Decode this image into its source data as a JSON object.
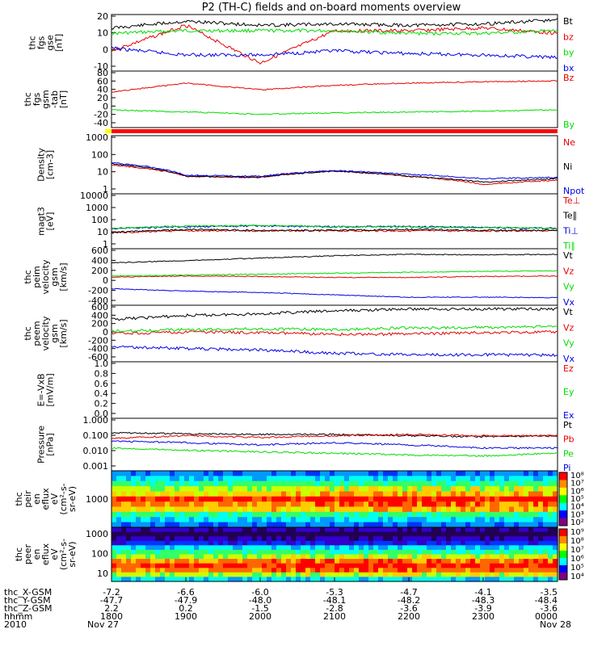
{
  "title": "P2 (TH-C) fields and on-board moments overview",
  "colors": {
    "black": "#000000",
    "red": "#e60000",
    "green": "#00dc00",
    "blue": "#0000e6"
  },
  "panels": [
    {
      "id": "fgs-gse",
      "ylabel": [
        "thc",
        "fgs",
        "gse",
        "[nT]"
      ],
      "yticks": [
        "20",
        "10",
        "0",
        "-10"
      ],
      "ylim": [
        -20,
        22
      ],
      "log": false,
      "legend": [
        {
          "text": "Bt",
          "color": "black"
        },
        {
          "text": "bz",
          "color": "red"
        },
        {
          "text": "by",
          "color": "green"
        },
        {
          "text": "bx",
          "color": "blue"
        }
      ]
    },
    {
      "id": "fgs-gsm",
      "ylabel": [
        "thc",
        "fgs",
        "gsm",
        "-tab"
      ],
      "ylabel2": "[nT]",
      "yticks": [
        "80",
        "60",
        "40",
        "20",
        "0",
        "-20",
        "-40"
      ],
      "ylim": [
        -45,
        82
      ],
      "log": false,
      "legend": [
        {
          "text": "Bz",
          "color": "red"
        },
        {
          "text": "By",
          "color": "green"
        }
      ]
    },
    {
      "id": "density",
      "ylabel": [
        "Density",
        "[cm-3]"
      ],
      "yticks": [
        "1000",
        "100",
        "10",
        "1"
      ],
      "ylim": [
        0,
        3
      ],
      "log": true,
      "legend": [
        {
          "text": "Ne",
          "color": "red"
        },
        {
          "text": "Ni",
          "color": "black"
        },
        {
          "text": "Npot",
          "color": "blue"
        }
      ]
    },
    {
      "id": "temperature",
      "ylabel": [
        "magt3",
        "[eV]"
      ],
      "yticks": [
        "10000",
        "1000",
        "100",
        "10",
        "1"
      ],
      "ylim": [
        0,
        4
      ],
      "log": true,
      "legend": [
        {
          "text": "Te⊥",
          "color": "red"
        },
        {
          "text": "Te∥",
          "color": "black"
        },
        {
          "text": "Ti⊥",
          "color": "blue"
        },
        {
          "text": "Ti∥",
          "color": "green"
        }
      ]
    },
    {
      "id": "peim-velocity",
      "ylabel": [
        "thc",
        "peim",
        "velocity",
        "gsm",
        "[km/s]"
      ],
      "yticks": [
        "600",
        "400",
        "200",
        "0",
        "-200",
        "-400"
      ],
      "ylim": [
        -600,
        600
      ],
      "log": false,
      "legend": [
        {
          "text": "Vt",
          "color": "black"
        },
        {
          "text": "Vz",
          "color": "red"
        },
        {
          "text": "Vy",
          "color": "green"
        },
        {
          "text": "Vx",
          "color": "blue"
        }
      ]
    },
    {
      "id": "peem-velocity",
      "ylabel": [
        "thc",
        "peem",
        "velocity",
        "gsm",
        "[km/s]"
      ],
      "yticks": [
        "600",
        "400",
        "200",
        "0",
        "-200",
        "-400",
        "-600"
      ],
      "ylim": [
        -600,
        600
      ],
      "log": false,
      "legend": [
        {
          "text": "Vt",
          "color": "black"
        },
        {
          "text": "Vz",
          "color": "red"
        },
        {
          "text": "Vy",
          "color": "green"
        },
        {
          "text": "Vx",
          "color": "blue"
        }
      ]
    },
    {
      "id": "efield",
      "ylabel": [
        "E=-VxB",
        "[mV/m]"
      ],
      "yticks": [
        "1.0",
        "0.8",
        "0.6",
        "0.4",
        "0.2",
        "0.0"
      ],
      "ylim": [
        0,
        1
      ],
      "log": false,
      "legend": [
        {
          "text": "Ez",
          "color": "red"
        },
        {
          "text": "Ey",
          "color": "green"
        },
        {
          "text": "Ex",
          "color": "blue"
        }
      ]
    },
    {
      "id": "pressure",
      "ylabel": [
        "Pressure",
        "[nPa]"
      ],
      "yticks": [
        "1.000",
        "0.100",
        "0.010",
        "0.001"
      ],
      "ylim": [
        -3,
        0
      ],
      "log": true,
      "legend": [
        {
          "text": "Pt",
          "color": "black"
        },
        {
          "text": "Pb",
          "color": "red"
        },
        {
          "text": "Pe",
          "color": "green"
        },
        {
          "text": "Pi",
          "color": "blue"
        }
      ]
    },
    {
      "id": "peir-spectrogram",
      "ylabel": [
        "thc",
        "peir",
        "en",
        "eflux",
        "eV",
        "(cm²-s-",
        "sr-eV)"
      ],
      "yticks": [
        "1000"
      ],
      "colorbar": [
        "10⁸",
        "10⁷",
        "10⁶",
        "10⁵",
        "10⁴",
        "10³",
        "10²"
      ]
    },
    {
      "id": "peer-spectrogram",
      "ylabel": [
        "thc",
        "peer",
        "en",
        "eflux",
        "eV",
        "(cm²-s-",
        "sr-eV)"
      ],
      "yticks": [
        "1000",
        "100",
        "10"
      ],
      "colorbar": [
        "10⁹",
        "10⁸",
        "10⁷",
        "10⁶",
        "10⁵",
        "10⁴"
      ]
    }
  ],
  "xaxis": {
    "rows": [
      {
        "label": "thc_X-GSM",
        "values": [
          "-7.2",
          "-6.6",
          "-6.0",
          "-5.3",
          "-4.7",
          "-4.1",
          "-3.5"
        ]
      },
      {
        "label": "thc_Y-GSM",
        "values": [
          "-47.7",
          "-47.9",
          "-48.0",
          "-48.1",
          "-48.2",
          "-48.3",
          "-48.4"
        ]
      },
      {
        "label": "thc_Z-GSM",
        "values": [
          "2.2",
          "0.2",
          "-1.5",
          "-2.8",
          "-3.6",
          "-3.9",
          "-3.6"
        ]
      },
      {
        "label": "hhmm",
        "values": [
          "1800",
          "1900",
          "2000",
          "2100",
          "2200",
          "2300",
          "0000"
        ]
      },
      {
        "label": "2010",
        "values": [
          "Nov 27",
          "",
          "",
          "",
          "",
          "",
          "Nov 28"
        ]
      }
    ]
  },
  "chart_data": [
    {
      "type": "line",
      "title": "P2 (TH-C) fields and on-board moments overview",
      "x": [
        "1800",
        "1900",
        "2000",
        "2100",
        "2200",
        "2300",
        "0000"
      ],
      "series": [
        {
          "name": "Bt",
          "values": [
            12,
            17,
            14,
            15,
            14,
            15,
            18
          ]
        },
        {
          "name": "bz",
          "values": [
            -5,
            14,
            -14,
            10,
            10,
            12,
            8
          ]
        },
        {
          "name": "by",
          "values": [
            8,
            10,
            10,
            10,
            8,
            8,
            10
          ]
        },
        {
          "name": "bx",
          "values": [
            -3,
            -8,
            -8,
            -5,
            -7,
            -8,
            -10
          ]
        }
      ]
    },
    {
      "type": "line",
      "x": [
        "1800",
        "1900",
        "2000",
        "2100",
        "2200",
        "2300",
        "0000"
      ],
      "series": [
        {
          "name": "Bz",
          "values": [
            35,
            55,
            40,
            50,
            55,
            58,
            60
          ]
        },
        {
          "name": "By",
          "values": [
            -5,
            -10,
            -15,
            -12,
            -10,
            -8,
            -5
          ]
        }
      ]
    },
    {
      "type": "line",
      "x": [
        "1800",
        "1900",
        "2000",
        "2100",
        "2200",
        "2300",
        "0000"
      ],
      "series": [
        {
          "name": "Ne",
          "values": [
            30,
            8,
            7,
            15,
            8,
            3,
            5
          ]
        },
        {
          "name": "Ni",
          "values": [
            35,
            8,
            7,
            15,
            8,
            4,
            6
          ]
        },
        {
          "name": "Npot",
          "values": [
            40,
            9,
            8,
            16,
            10,
            6,
            7
          ]
        }
      ]
    },
    {
      "type": "line",
      "x": [
        "1800",
        "1900",
        "2000",
        "2100",
        "2200",
        "2300",
        "0000"
      ],
      "series": [
        {
          "name": "Te⊥",
          "values": [
            15,
            20,
            20,
            20,
            20,
            20,
            20
          ]
        },
        {
          "name": "Te∥",
          "values": [
            15,
            25,
            22,
            22,
            25,
            22,
            22
          ]
        },
        {
          "name": "Ti⊥",
          "values": [
            30,
            40,
            45,
            40,
            40,
            35,
            30
          ]
        },
        {
          "name": "Ti∥",
          "values": [
            30,
            45,
            50,
            40,
            40,
            35,
            30
          ]
        }
      ]
    },
    {
      "type": "line",
      "x": [
        "1800",
        "1900",
        "2000",
        "2100",
        "2200",
        "2300",
        "0000"
      ],
      "series": [
        {
          "name": "Vt",
          "values": [
            300,
            350,
            400,
            450,
            480,
            470,
            480
          ]
        },
        {
          "name": "Vz",
          "values": [
            0,
            20,
            10,
            -10,
            -10,
            10,
            20
          ]
        },
        {
          "name": "Vy",
          "values": [
            20,
            40,
            60,
            80,
            100,
            120,
            130
          ]
        },
        {
          "name": "Vx",
          "values": [
            -250,
            -300,
            -330,
            -380,
            -430,
            -430,
            -440
          ]
        }
      ]
    },
    {
      "type": "line",
      "x": [
        "1800",
        "1900",
        "2000",
        "2100",
        "2200",
        "2300",
        "0000"
      ],
      "series": [
        {
          "name": "Vt",
          "values": [
            300,
            380,
            420,
            480,
            520,
            520,
            520
          ]
        },
        {
          "name": "Vz",
          "values": [
            0,
            30,
            20,
            -20,
            -10,
            20,
            30
          ]
        },
        {
          "name": "Vy",
          "values": [
            50,
            80,
            100,
            80,
            120,
            130,
            150
          ]
        },
        {
          "name": "Vx",
          "values": [
            -280,
            -320,
            -350,
            -420,
            -450,
            -450,
            -460
          ]
        }
      ]
    },
    {
      "type": "line",
      "x": [
        "1800",
        "1900",
        "2000",
        "2100",
        "2200",
        "2300",
        "0000"
      ],
      "series": []
    },
    {
      "type": "line",
      "x": [
        "1800",
        "1900",
        "2000",
        "2100",
        "2200",
        "2300",
        "0000"
      ],
      "series": [
        {
          "name": "Pt",
          "values": [
            0.15,
            0.13,
            0.12,
            0.12,
            0.1,
            0.09,
            0.1
          ]
        },
        {
          "name": "Pb",
          "values": [
            0.07,
            0.1,
            0.08,
            0.1,
            0.12,
            0.1,
            0.1
          ]
        },
        {
          "name": "Pe",
          "values": [
            0.02,
            0.015,
            0.012,
            0.01,
            0.008,
            0.007,
            0.01
          ]
        },
        {
          "name": "Pi",
          "values": [
            0.05,
            0.04,
            0.03,
            0.04,
            0.03,
            0.02,
            0.02
          ]
        }
      ]
    },
    {
      "type": "heatmap",
      "ylabel": "eV",
      "yticks": [
        "1000"
      ]
    },
    {
      "type": "heatmap",
      "ylabel": "eV",
      "yticks": [
        "1000",
        "100",
        "10"
      ]
    }
  ]
}
